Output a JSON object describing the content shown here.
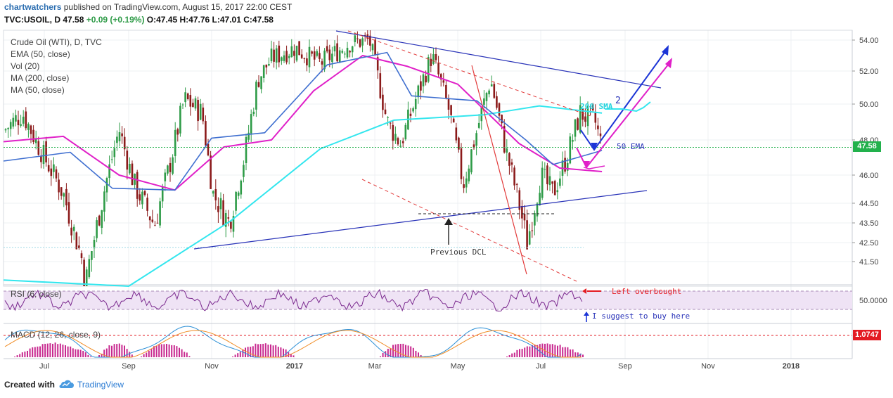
{
  "header": {
    "author": "chartwatchers",
    "published_text": "published on TradingView.com, August 15, 2017 22:00 CEST",
    "ticker_line": "TVC:USOIL, D",
    "last": "47.58",
    "change": "+0.09 (+0.19%)",
    "ohlc": [
      "O:47.45",
      "H:47.76",
      "L:47.01",
      "C:47.58"
    ]
  },
  "legend": [
    "Crude Oil (WTI), D, TVC",
    "EMA (50, close)",
    "Vol (20)",
    "MA (200, close)",
    "MA (50, close)"
  ],
  "rsi_title": "RSI (6, close)",
  "rsi_value": "50.0000",
  "macd_title": "MACD (12, 26, close, 9)",
  "macd_value": "1.0747",
  "price_label": "47.58",
  "annotations": {
    "sma200": "200 SMA",
    "ema50": "50 EMA",
    "prev_dcl": "Previous DCL",
    "wave2": "2",
    "left_overbought": "Left overbought",
    "buy_here": "I suggest to buy here"
  },
  "footer": {
    "created_with": "Created with",
    "brand": "TradingView"
  },
  "colors": {
    "up": "#2e9b47",
    "down": "#8b1a1a",
    "ema50": "#e020c8",
    "sma200": "#33e6ee",
    "ma50": "#3f6fd0",
    "trend": "#2933b8",
    "dashed_red": "#e23b3b",
    "rsi": "#7b2a8f",
    "price": "#22b14c",
    "macd_box": "#e31b23"
  },
  "chart_data": [
    {
      "type": "candlestick",
      "title": "Crude Oil (WTI), D, TVC",
      "x": [
        "Jul",
        "Sep",
        "Nov",
        "2017",
        "Mar",
        "May",
        "Jul",
        "Sep",
        "Nov",
        "2018"
      ],
      "y_ticks": [
        54.0,
        52.0,
        50.0,
        48.0,
        46.0,
        44.5,
        43.5,
        42.5,
        41.5
      ],
      "ylim": [
        40.7,
        54.7
      ],
      "close_series": [
        {
          "date": "2016-06-01",
          "close": 48.5
        },
        {
          "date": "2016-06-15",
          "close": 49.5
        },
        {
          "date": "2016-07-01",
          "close": 47.0
        },
        {
          "date": "2016-07-15",
          "close": 45.0
        },
        {
          "date": "2016-08-01",
          "close": 40.8
        },
        {
          "date": "2016-08-15",
          "close": 45.5
        },
        {
          "date": "2016-08-25",
          "close": 48.6
        },
        {
          "date": "2016-09-05",
          "close": 45.5
        },
        {
          "date": "2016-09-20",
          "close": 43.4
        },
        {
          "date": "2016-10-01",
          "close": 46.5
        },
        {
          "date": "2016-10-12",
          "close": 50.3
        },
        {
          "date": "2016-10-25",
          "close": 49.5
        },
        {
          "date": "2016-11-02",
          "close": 45.0
        },
        {
          "date": "2016-11-14",
          "close": 43.5
        },
        {
          "date": "2016-11-25",
          "close": 47.0
        },
        {
          "date": "2016-12-05",
          "close": 51.5
        },
        {
          "date": "2016-12-15",
          "close": 52.8
        },
        {
          "date": "2017-01-01",
          "close": 53.5
        },
        {
          "date": "2017-01-20",
          "close": 52.5
        },
        {
          "date": "2017-02-10",
          "close": 53.8
        },
        {
          "date": "2017-02-25",
          "close": 54.0
        },
        {
          "date": "2017-03-10",
          "close": 49.0
        },
        {
          "date": "2017-03-20",
          "close": 47.8
        },
        {
          "date": "2017-04-01",
          "close": 50.5
        },
        {
          "date": "2017-04-12",
          "close": 53.0
        },
        {
          "date": "2017-04-25",
          "close": 49.5
        },
        {
          "date": "2017-05-05",
          "close": 45.5
        },
        {
          "date": "2017-05-15",
          "close": 48.5
        },
        {
          "date": "2017-05-25",
          "close": 51.5
        },
        {
          "date": "2017-06-05",
          "close": 47.5
        },
        {
          "date": "2017-06-15",
          "close": 44.5
        },
        {
          "date": "2017-06-21",
          "close": 42.5
        },
        {
          "date": "2017-07-01",
          "close": 46.0
        },
        {
          "date": "2017-07-10",
          "close": 45.0
        },
        {
          "date": "2017-07-20",
          "close": 47.0
        },
        {
          "date": "2017-07-30",
          "close": 49.5
        },
        {
          "date": "2017-08-10",
          "close": 49.0
        },
        {
          "date": "2017-08-15",
          "close": 47.58
        }
      ],
      "series": [
        {
          "name": "EMA (50, close)",
          "type": "line",
          "values": [
            {
              "date": "2016-06-01",
              "y": 47.9
            },
            {
              "date": "2016-07-15",
              "y": 48.2
            },
            {
              "date": "2016-08-25",
              "y": 46.0
            },
            {
              "date": "2016-10-05",
              "y": 45.2
            },
            {
              "date": "2016-11-10",
              "y": 47.6
            },
            {
              "date": "2016-12-15",
              "y": 48.0
            },
            {
              "date": "2017-01-15",
              "y": 50.8
            },
            {
              "date": "2017-02-20",
              "y": 53.0
            },
            {
              "date": "2017-03-25",
              "y": 52.3
            },
            {
              "date": "2017-05-01",
              "y": 51.2
            },
            {
              "date": "2017-06-15",
              "y": 47.8
            },
            {
              "date": "2017-07-15",
              "y": 46.4
            },
            {
              "date": "2017-08-15",
              "y": 46.2
            }
          ]
        },
        {
          "name": "MA (200, close)",
          "type": "line",
          "values": [
            {
              "date": "2016-06-01",
              "y": 40.9
            },
            {
              "date": "2016-09-01",
              "y": 40.6
            },
            {
              "date": "2016-11-15",
              "y": 43.6
            },
            {
              "date": "2017-01-20",
              "y": 47.5
            },
            {
              "date": "2017-03-15",
              "y": 49.1
            },
            {
              "date": "2017-05-20",
              "y": 49.4
            },
            {
              "date": "2017-06-30",
              "y": 49.9
            },
            {
              "date": "2017-08-15",
              "y": 49.5
            }
          ]
        },
        {
          "name": "MA (50, close)",
          "type": "line",
          "values": [
            {
              "date": "2016-06-01",
              "y": 46.8
            },
            {
              "date": "2016-07-20",
              "y": 47.3
            },
            {
              "date": "2016-08-20",
              "y": 45.3
            },
            {
              "date": "2016-10-05",
              "y": 45.2
            },
            {
              "date": "2016-11-01",
              "y": 48.1
            },
            {
              "date": "2016-12-10",
              "y": 48.4
            },
            {
              "date": "2017-01-25",
              "y": 52.4
            },
            {
              "date": "2017-03-10",
              "y": 53.2
            },
            {
              "date": "2017-03-28",
              "y": 50.5
            },
            {
              "date": "2017-05-15",
              "y": 50.2
            },
            {
              "date": "2017-06-20",
              "y": 48.0
            },
            {
              "date": "2017-07-10",
              "y": 46.6
            },
            {
              "date": "2017-08-15",
              "y": 47.4
            }
          ]
        }
      ],
      "price_line": 47.58,
      "prev_dcl_level": 44.5
    },
    {
      "type": "line",
      "title": "RSI (6, close)",
      "y_ticks": [
        50.0
      ],
      "bands": [
        30,
        70
      ],
      "last": 50.0
    },
    {
      "type": "bar",
      "title": "MACD (12, 26, close, 9)",
      "last": 1.0747
    }
  ]
}
